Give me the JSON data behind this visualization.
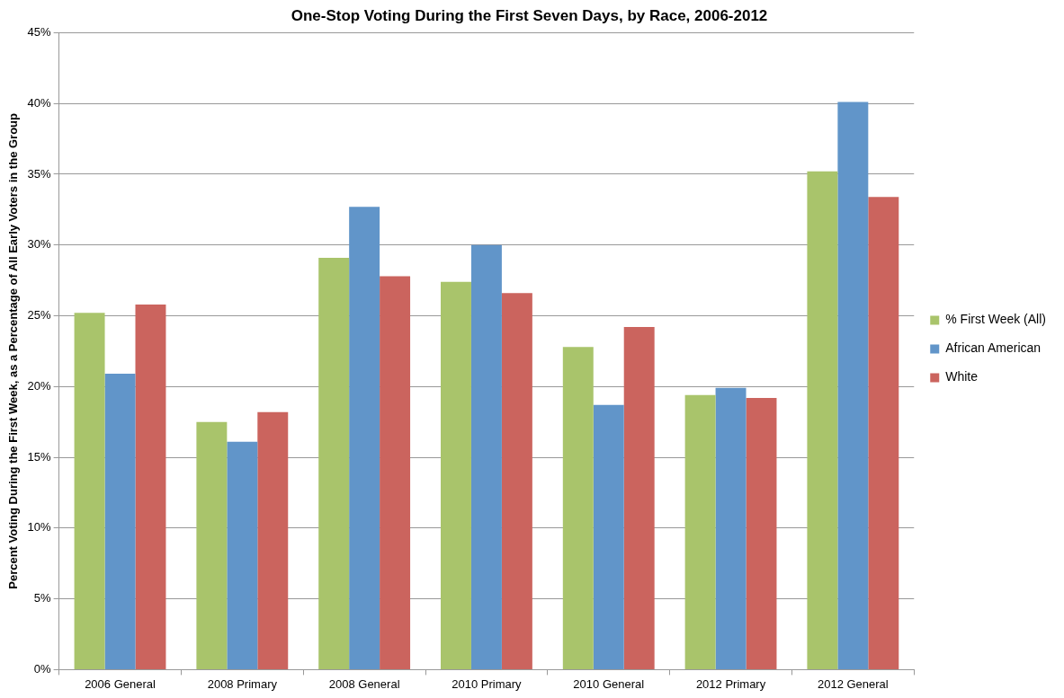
{
  "chart_data": {
    "type": "bar",
    "title": "One-Stop Voting During the First Seven Days, by Race, 2006-2012",
    "ylabel": "Percent Voting During the First Week, as a Percentage of All Early Voters in the Group",
    "categories": [
      "2006 General",
      "2008 Primary",
      "2008 General",
      "2010 Primary",
      "2010 General",
      "2012 Primary",
      "2012 General"
    ],
    "series": [
      {
        "name": "% First Week (All)",
        "color": "#a9c46b",
        "values": [
          25.2,
          17.5,
          29.1,
          27.4,
          22.8,
          19.4,
          35.2
        ]
      },
      {
        "name": "African American",
        "color": "#6195c9",
        "values": [
          20.9,
          16.1,
          32.7,
          30.0,
          18.7,
          19.9,
          40.1
        ]
      },
      {
        "name": "White",
        "color": "#cb645e",
        "values": [
          25.8,
          18.2,
          27.8,
          26.6,
          24.2,
          19.2,
          33.4
        ]
      }
    ],
    "ylim": [
      0,
      45
    ],
    "yticks": [
      {
        "value": 0,
        "label": "0%"
      },
      {
        "value": 5,
        "label": "5%"
      },
      {
        "value": 10,
        "label": "10%"
      },
      {
        "value": 15,
        "label": "15%"
      },
      {
        "value": 20,
        "label": "20%"
      },
      {
        "value": 25,
        "label": "25%"
      },
      {
        "value": 30,
        "label": "30%"
      },
      {
        "value": 35,
        "label": "35%"
      },
      {
        "value": 40,
        "label": "40%"
      },
      {
        "value": 45,
        "label": "45%"
      }
    ],
    "grid": "y",
    "legend": "right"
  }
}
